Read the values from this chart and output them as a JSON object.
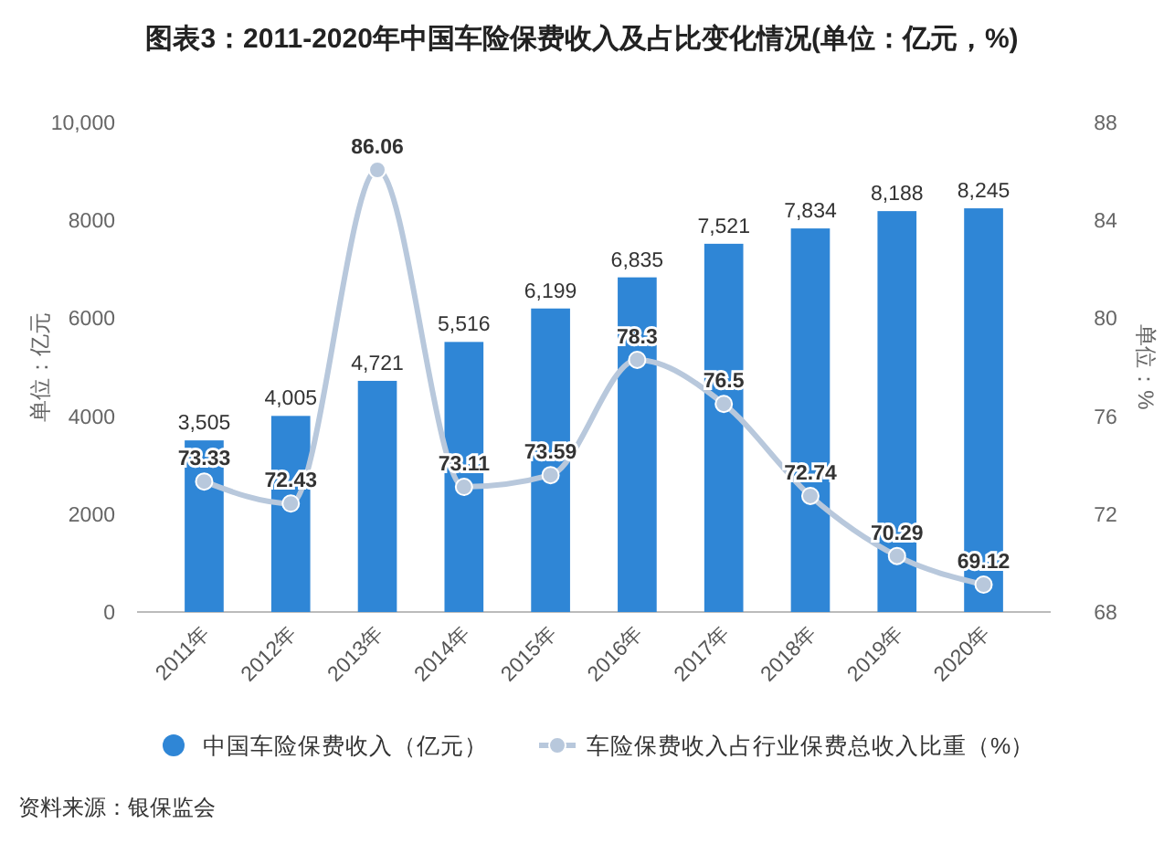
{
  "chart_data": {
    "type": "bar",
    "title": "图表3：2011-2020年中国车险保费收入及占比变化情况(单位：亿元，%)",
    "ylabel": "单位：亿元",
    "y2label": "单位：%",
    "categories": [
      "2011年",
      "2012年",
      "2013年",
      "2014年",
      "2015年",
      "2016年",
      "2017年",
      "2018年",
      "2019年",
      "2020年"
    ],
    "series": [
      {
        "name": "中国车险保费收入（亿元）",
        "color": "#2f86d6",
        "values": [
          3505,
          4005,
          4721,
          5516,
          6199,
          6835,
          7521,
          7834,
          8188,
          8245
        ],
        "value_labels": [
          "3,505",
          "4,005",
          "4,721",
          "5,516",
          "6,199",
          "6,835",
          "7,521",
          "7,834",
          "8,188",
          "8,245"
        ]
      },
      {
        "name": "车险保费收入占行业保费总收入比重（%）",
        "type": "line",
        "axis": "y2",
        "color": "#b8c8dc",
        "marker": "circle",
        "values": [
          73.33,
          72.43,
          86.06,
          73.11,
          73.59,
          78.3,
          76.5,
          72.74,
          70.29,
          69.12
        ],
        "value_labels": [
          "73.33",
          "72.43",
          "86.06",
          "73.11",
          "73.59",
          "78.3",
          "76.5",
          "72.74",
          "70.29",
          "69.12"
        ]
      }
    ],
    "ylim": [
      0,
      10000
    ],
    "yticks": [
      0,
      2000,
      4000,
      6000,
      8000,
      {
        "value": 10000,
        "label": "10,000"
      }
    ],
    "y2lim": [
      68,
      88
    ],
    "y2ticks": [
      68,
      72,
      76,
      80,
      84,
      88
    ],
    "legend": "bottom",
    "annotations": [
      "资料来源：银保监会"
    ]
  }
}
